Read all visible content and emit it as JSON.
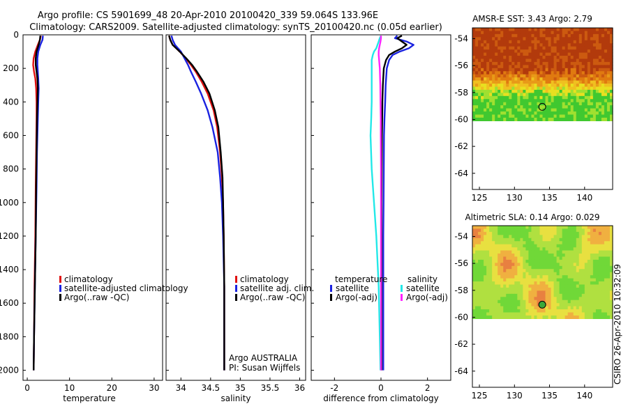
{
  "title": {
    "line1": "Argo profile: CS 5901699_48 20-Apr-2010 20100420_339 59.064S 133.96E",
    "line2": "Climatology: CARS2009. Satellite-adjusted climatology: synTS_20100420.nc (0.05d earlier)"
  },
  "colors": {
    "climatology": "#e01010",
    "satellite": "#1a22e0",
    "argo": "#000000",
    "sat_sal": "#22e8e8",
    "argo_sal": "#ff22ff"
  },
  "credit": "CSIRO 26-Apr-2010 10:32:09",
  "depth_ticks": [
    "0",
    "200",
    "400",
    "600",
    "800",
    "1000",
    "1200",
    "1400",
    "1600",
    "1800",
    "2000"
  ],
  "map_lat_ticks": [
    "-54",
    "-56",
    "-58",
    "-60",
    "-62",
    "-64"
  ],
  "map_lon_ticks": [
    "125",
    "130",
    "135",
    "140"
  ],
  "chart_data": [
    {
      "type": "line",
      "id": "temperature",
      "xlabel": "temperature",
      "ylabel": "",
      "xlim": [
        -1,
        32
      ],
      "ylim": [
        2060,
        0
      ],
      "x_ticks": [
        "0",
        "10",
        "20",
        "30"
      ],
      "depth": [
        5,
        30,
        60,
        100,
        140,
        180,
        220,
        260,
        320,
        400,
        500,
        700,
        900,
        1200,
        1500,
        1800,
        2000
      ],
      "legend": [
        "climatology",
        "satellite-adjusted climatology",
        "Argo(..raw -QC)"
      ],
      "series": [
        {
          "name": "climatology",
          "color_key": "climatology",
          "values": [
            3.2,
            3.0,
            2.5,
            1.9,
            1.5,
            1.4,
            1.6,
            1.9,
            2.1,
            2.2,
            2.2,
            2.1,
            2.0,
            1.9,
            1.7,
            1.6,
            1.5
          ]
        },
        {
          "name": "satellite-adjusted climatology",
          "color_key": "satellite",
          "values": [
            3.7,
            3.6,
            3.1,
            2.6,
            2.4,
            2.4,
            2.5,
            2.6,
            2.7,
            2.6,
            2.5,
            2.3,
            2.2,
            2.0,
            1.8,
            1.6,
            1.5
          ]
        },
        {
          "name": "Argo(..raw -QC)",
          "color_key": "argo",
          "values": [
            3.1,
            3.0,
            2.7,
            2.2,
            2.0,
            2.0,
            2.2,
            2.4,
            2.5,
            2.4,
            2.3,
            2.2,
            2.1,
            2.0,
            1.8,
            1.6,
            1.5
          ]
        }
      ]
    },
    {
      "type": "line",
      "id": "salinity",
      "xlabel": "salinity",
      "xlim": [
        33.75,
        36.1
      ],
      "ylim": [
        2060,
        0
      ],
      "x_ticks": [
        "34",
        "34.5",
        "35",
        "35.5",
        "36"
      ],
      "x_tick_values": [
        34,
        34.5,
        35,
        35.5,
        36
      ],
      "depth": [
        5,
        30,
        60,
        100,
        140,
        180,
        220,
        280,
        350,
        450,
        550,
        700,
        850,
        1000,
        1200,
        1500,
        1800,
        2000
      ],
      "legend": [
        "climatology",
        "satellite adj. clim.",
        "Argo(..raw -QC)"
      ],
      "annotation": [
        "Argo AUSTRALIA",
        "PI: Susan Wijffels"
      ],
      "series": [
        {
          "name": "climatology",
          "color_key": "climatology",
          "values": [
            33.8,
            33.82,
            33.86,
            33.98,
            34.08,
            34.17,
            34.25,
            34.35,
            34.45,
            34.55,
            34.61,
            34.66,
            34.69,
            34.71,
            34.72,
            34.73,
            34.73,
            34.73
          ]
        },
        {
          "name": "satellite adj. clim.",
          "color_key": "satellite",
          "values": [
            33.84,
            33.86,
            33.9,
            34.0,
            34.06,
            34.12,
            34.17,
            34.25,
            34.34,
            34.45,
            34.53,
            34.62,
            34.66,
            34.69,
            34.71,
            34.73,
            34.73,
            34.73
          ]
        },
        {
          "name": "Argo(..raw -QC)",
          "color_key": "argo",
          "values": [
            33.8,
            33.82,
            33.86,
            33.98,
            34.09,
            34.19,
            34.27,
            34.38,
            34.48,
            34.57,
            34.63,
            34.67,
            34.7,
            34.71,
            34.72,
            34.73,
            34.73,
            34.73
          ]
        }
      ]
    },
    {
      "type": "line",
      "id": "difference",
      "xlabel": "difference from climatology",
      "xlim": [
        -3,
        3
      ],
      "ylim": [
        2060,
        0
      ],
      "x_ticks": [
        "-2",
        "0",
        "2"
      ],
      "x_tick_values": [
        -2,
        0,
        2
      ],
      "depth": [
        5,
        20,
        40,
        60,
        80,
        100,
        120,
        150,
        200,
        300,
        400,
        500,
        600,
        800,
        1000,
        1200,
        1500,
        1800,
        2000
      ],
      "legend_titles": [
        "temperature",
        "salinity"
      ],
      "legend": [
        "satellite",
        "Argo(-adj)",
        "satellite",
        "Argo(-adj)"
      ],
      "series": [
        {
          "name": "temperature satellite",
          "color_key": "satellite",
          "values": [
            0.7,
            0.6,
            1.1,
            1.4,
            1.2,
            0.8,
            0.5,
            0.35,
            0.25,
            0.2,
            0.18,
            0.15,
            0.13,
            0.12,
            0.11,
            0.1,
            0.1,
            0.1,
            0.1
          ]
        },
        {
          "name": "temperature Argo(-adj)",
          "color_key": "argo",
          "values": [
            0.9,
            0.7,
            0.9,
            1.1,
            0.9,
            0.6,
            0.35,
            0.22,
            0.12,
            0.08,
            0.06,
            0.05,
            0.04,
            0.03,
            0.02,
            0.02,
            0.02,
            0.02,
            0.02
          ]
        },
        {
          "name": "salinity satellite",
          "color_key": "sat_sal",
          "values": [
            0.0,
            -0.05,
            -0.1,
            -0.15,
            -0.2,
            -0.3,
            -0.35,
            -0.4,
            -0.4,
            -0.4,
            -0.4,
            -0.42,
            -0.45,
            -0.4,
            -0.3,
            -0.2,
            -0.1,
            -0.05,
            -0.02
          ]
        },
        {
          "name": "salinity Argo(-adj)",
          "color_key": "argo_sal",
          "values": [
            0.0,
            0.0,
            -0.02,
            -0.05,
            -0.08,
            -0.1,
            -0.1,
            -0.08,
            -0.05,
            -0.03,
            -0.02,
            -0.01,
            -0.01,
            0.0,
            0.0,
            0.0,
            0.0,
            0.0,
            0.0
          ]
        }
      ]
    },
    {
      "type": "heatmap",
      "id": "sst_map",
      "title": "AMSR-E SST: 3.43 Argo: 2.79",
      "xlim": [
        124,
        144
      ],
      "ylim": [
        -65.2,
        -53.2
      ],
      "data_extent": {
        "lat": [
          -60.1,
          -53.2
        ]
      },
      "argo_position": {
        "lon": 133.96,
        "lat": -59.064
      },
      "colorscale": [
        "#b23a0c",
        "#cc5a10",
        "#e07a10",
        "#e89a18",
        "#f0c020",
        "#e8e020",
        "#a0e030",
        "#40c830"
      ]
    },
    {
      "type": "heatmap",
      "id": "sla_map",
      "title": "Altimetric SLA: 0.14 Argo: 0.029",
      "xlim": [
        124,
        144
      ],
      "ylim": [
        -65.2,
        -53.2
      ],
      "data_extent": {
        "lat": [
          -60.1,
          -53.2
        ]
      },
      "argo_position": {
        "lon": 133.96,
        "lat": -59.064
      },
      "colorscale": [
        "#30c830",
        "#70d838",
        "#b0e040",
        "#e8e040",
        "#f0b040",
        "#e88040"
      ]
    }
  ]
}
